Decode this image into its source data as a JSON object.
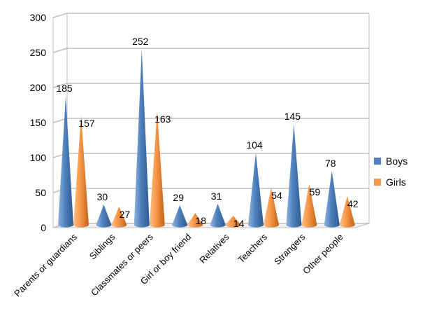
{
  "chart_data": {
    "type": "bar",
    "style": "3d-cone",
    "categories": [
      "Parents or guardians",
      "Siblings",
      "Classmates or peers",
      "Girl or boy friend",
      "Relatives",
      "Teachers",
      "Strangers",
      "Other people"
    ],
    "series": [
      {
        "name": "Boys",
        "color": "#4F81BD",
        "values": [
          185,
          30,
          252,
          29,
          31,
          104,
          145,
          78
        ]
      },
      {
        "name": "Girls",
        "color": "#F79646",
        "values": [
          157,
          27,
          163,
          18,
          14,
          54,
          59,
          42
        ]
      }
    ],
    "yticks": [
      0,
      50,
      100,
      150,
      200,
      250,
      300
    ],
    "ylim": [
      0,
      300
    ],
    "grid": true,
    "legend": "right"
  }
}
